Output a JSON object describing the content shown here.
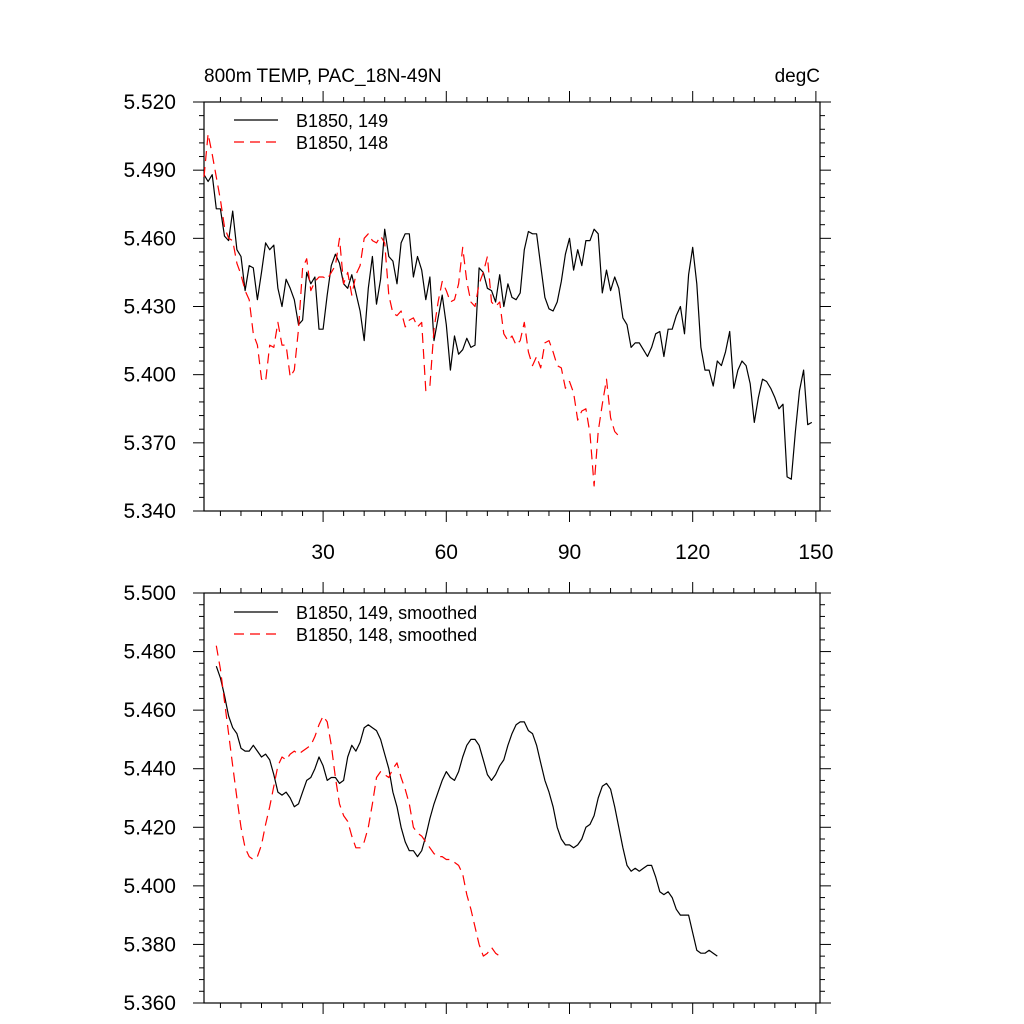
{
  "chart_data": [
    {
      "type": "line",
      "title": "800m TEMP, PAC_18N-49N",
      "units": "degC",
      "xlim": [
        1,
        151
      ],
      "ylim": [
        5.34,
        5.52
      ],
      "xticks": [
        30,
        60,
        90,
        120,
        150
      ],
      "xtick_labels": [
        "30",
        "60",
        "90",
        "120",
        "150"
      ],
      "yticks": [
        5.34,
        5.37,
        5.4,
        5.43,
        5.46,
        5.49,
        5.52
      ],
      "ytick_labels": [
        "5.340",
        "5.370",
        "5.400",
        "5.430",
        "5.460",
        "5.490",
        "5.520"
      ],
      "legend_position": "top-left",
      "series": [
        {
          "name": "B1850, 149",
          "color": "#000000",
          "dash": "solid",
          "x_start": 1,
          "values": [
            5.488,
            5.485,
            5.488,
            5.473,
            5.473,
            5.461,
            5.459,
            5.472,
            5.455,
            5.452,
            5.437,
            5.448,
            5.447,
            5.433,
            5.445,
            5.458,
            5.455,
            5.457,
            5.438,
            5.43,
            5.442,
            5.438,
            5.433,
            5.422,
            5.424,
            5.445,
            5.44,
            5.443,
            5.42,
            5.42,
            5.435,
            5.448,
            5.453,
            5.449,
            5.44,
            5.438,
            5.444,
            5.436,
            5.428,
            5.415,
            5.438,
            5.452,
            5.431,
            5.442,
            5.464,
            5.452,
            5.45,
            5.44,
            5.458,
            5.462,
            5.462,
            5.443,
            5.452,
            5.446,
            5.433,
            5.443,
            5.415,
            5.425,
            5.435,
            5.422,
            5.402,
            5.417,
            5.409,
            5.411,
            5.416,
            5.412,
            5.413,
            5.447,
            5.445,
            5.438,
            5.437,
            5.432,
            5.444,
            5.43,
            5.44,
            5.434,
            5.433,
            5.436,
            5.455,
            5.463,
            5.462,
            5.462,
            5.448,
            5.434,
            5.429,
            5.428,
            5.432,
            5.441,
            5.453,
            5.46,
            5.446,
            5.455,
            5.448,
            5.459,
            5.459,
            5.464,
            5.462,
            5.436,
            5.446,
            5.437,
            5.443,
            5.438,
            5.425,
            5.422,
            5.412,
            5.414,
            5.414,
            5.411,
            5.408,
            5.412,
            5.418,
            5.419,
            5.408,
            5.42,
            5.42,
            5.426,
            5.43,
            5.418,
            5.444,
            5.456,
            5.44,
            5.412,
            5.402,
            5.402,
            5.395,
            5.406,
            5.404,
            5.41,
            5.419,
            5.394,
            5.402,
            5.406,
            5.404,
            5.396,
            5.379,
            5.39,
            5.398,
            5.397,
            5.394,
            5.39,
            5.385,
            5.387,
            5.355,
            5.354,
            5.375,
            5.393,
            5.402,
            5.378,
            5.379
          ]
        },
        {
          "name": "B1850, 148",
          "color": "#ff0000",
          "dash": "dashed",
          "x_start": 1,
          "values": [
            5.487,
            5.506,
            5.497,
            5.487,
            5.477,
            5.465,
            5.46,
            5.459,
            5.449,
            5.444,
            5.437,
            5.433,
            5.418,
            5.413,
            5.398,
            5.397,
            5.413,
            5.412,
            5.423,
            5.413,
            5.413,
            5.399,
            5.402,
            5.42,
            5.447,
            5.451,
            5.437,
            5.441,
            5.443,
            5.443,
            5.442,
            5.445,
            5.448,
            5.46,
            5.44,
            5.445,
            5.435,
            5.444,
            5.448,
            5.46,
            5.462,
            5.459,
            5.458,
            5.461,
            5.458,
            5.435,
            5.427,
            5.426,
            5.428,
            5.421,
            5.424,
            5.425,
            5.421,
            5.423,
            5.393,
            5.395,
            5.42,
            5.432,
            5.441,
            5.437,
            5.432,
            5.433,
            5.44,
            5.456,
            5.441,
            5.432,
            5.43,
            5.44,
            5.445,
            5.452,
            5.432,
            5.43,
            5.432,
            5.418,
            5.415,
            5.417,
            5.413,
            5.415,
            5.423,
            5.41,
            5.404,
            5.408,
            5.403,
            5.414,
            5.415,
            5.41,
            5.404,
            5.403,
            5.394,
            5.397,
            5.392,
            5.38,
            5.384,
            5.385,
            5.374,
            5.351,
            5.375,
            5.387,
            5.398,
            5.381,
            5.375,
            5.373
          ]
        }
      ]
    },
    {
      "type": "line",
      "xlim": [
        1,
        151
      ],
      "ylim": [
        5.36,
        5.5
      ],
      "xticks": [
        30,
        60,
        90,
        120,
        150
      ],
      "yticks": [
        5.36,
        5.38,
        5.4,
        5.42,
        5.44,
        5.46,
        5.48,
        5.5
      ],
      "ytick_labels": [
        "5.360",
        "5.380",
        "5.400",
        "5.420",
        "5.440",
        "5.460",
        "5.480",
        "5.500"
      ],
      "legend_position": "top-left",
      "series": [
        {
          "name": "B1850, 149, smoothed",
          "color": "#000000",
          "dash": "solid",
          "x_start": 4,
          "values": [
            5.475,
            5.471,
            5.465,
            5.458,
            5.454,
            5.452,
            5.447,
            5.446,
            5.446,
            5.448,
            5.446,
            5.444,
            5.445,
            5.443,
            5.438,
            5.432,
            5.431,
            5.432,
            5.43,
            5.427,
            5.428,
            5.432,
            5.436,
            5.437,
            5.44,
            5.444,
            5.441,
            5.436,
            5.437,
            5.437,
            5.435,
            5.436,
            5.444,
            5.448,
            5.446,
            5.449,
            5.454,
            5.455,
            5.454,
            5.453,
            5.45,
            5.445,
            5.44,
            5.432,
            5.427,
            5.42,
            5.415,
            5.412,
            5.412,
            5.41,
            5.412,
            5.417,
            5.423,
            5.428,
            5.432,
            5.436,
            5.439,
            5.437,
            5.436,
            5.439,
            5.444,
            5.448,
            5.45,
            5.45,
            5.448,
            5.443,
            5.438,
            5.436,
            5.438,
            5.441,
            5.443,
            5.448,
            5.452,
            5.455,
            5.456,
            5.456,
            5.453,
            5.452,
            5.448,
            5.442,
            5.436,
            5.432,
            5.427,
            5.42,
            5.416,
            5.414,
            5.414,
            5.413,
            5.414,
            5.416,
            5.42,
            5.421,
            5.424,
            5.43,
            5.434,
            5.435,
            5.433,
            5.427,
            5.42,
            5.413,
            5.407,
            5.405,
            5.406,
            5.405,
            5.406,
            5.407,
            5.407,
            5.403,
            5.398,
            5.397,
            5.398,
            5.396,
            5.392,
            5.39,
            5.39,
            5.39,
            5.384,
            5.378,
            5.377,
            5.377,
            5.378,
            5.377,
            5.376
          ]
        },
        {
          "name": "B1850, 148, smoothed",
          "color": "#ff0000",
          "dash": "dashed",
          "x_start": 4,
          "values": [
            5.482,
            5.474,
            5.463,
            5.452,
            5.441,
            5.43,
            5.42,
            5.413,
            5.41,
            5.409,
            5.41,
            5.414,
            5.421,
            5.427,
            5.434,
            5.441,
            5.444,
            5.443,
            5.445,
            5.446,
            5.445,
            5.446,
            5.447,
            5.448,
            5.451,
            5.455,
            5.458,
            5.456,
            5.448,
            5.437,
            5.428,
            5.424,
            5.422,
            5.417,
            5.413,
            5.413,
            5.415,
            5.42,
            5.428,
            5.437,
            5.439,
            5.438,
            5.437,
            5.44,
            5.442,
            5.437,
            5.433,
            5.428,
            5.42,
            5.418,
            5.417,
            5.415,
            5.413,
            5.411,
            5.41,
            5.41,
            5.409,
            5.409,
            5.408,
            5.407,
            5.404,
            5.397,
            5.392,
            5.386,
            5.38,
            5.376,
            5.377,
            5.379,
            5.377,
            5.376
          ]
        }
      ]
    }
  ]
}
